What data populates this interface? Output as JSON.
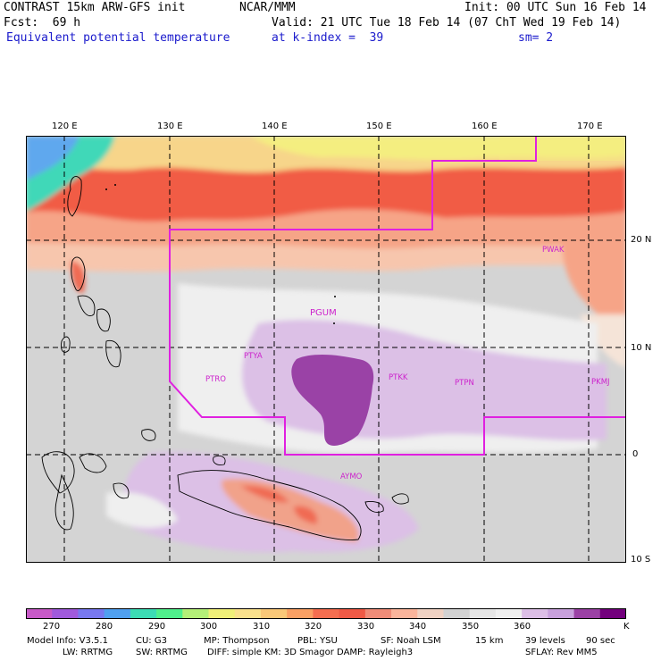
{
  "header": {
    "model": "CONTRAST 15km ARW-GFS init",
    "org": "NCAR/MMM",
    "init": "Init: 00 UTC Sun 16 Feb 14",
    "fcst": "Fcst:  69 h",
    "valid": "Valid: 21 UTC Tue 18 Feb 14 (07 ChT Wed 19 Feb 14)",
    "field": "Equivalent potential temperature",
    "level": "at k-index =  39",
    "smooth": "sm= 2"
  },
  "axes": {
    "lon_labels": [
      "120 E",
      "130 E",
      "140 E",
      "150 E",
      "160 E",
      "170 E"
    ],
    "lat_labels": [
      "20 N",
      "10 N",
      "0",
      "10 S"
    ]
  },
  "stations": [
    "PGUM",
    "PTYA",
    "PTRO",
    "PTKK",
    "PTPN",
    "PKMJ",
    "PWAK",
    "AYMO"
  ],
  "colorbar": {
    "ticks": [
      "270",
      "280",
      "290",
      "300",
      "310",
      "320",
      "330",
      "340",
      "350",
      "360"
    ],
    "unit": "K",
    "colors": [
      "#c85ac8",
      "#a05adc",
      "#7878f0",
      "#50a0f0",
      "#3cdcb4",
      "#50f08c",
      "#b4f078",
      "#f0f078",
      "#fae18c",
      "#fac878",
      "#faa064",
      "#f56e50",
      "#f05a46",
      "#f08c78",
      "#fab49b",
      "#f0d2c3",
      "#d2d2d2",
      "#e6e6e6",
      "#f0f0f0",
      "#dcbee6",
      "#c8a0dc",
      "#9b41a5",
      "#73007d"
    ]
  },
  "footer": {
    "line1": [
      "Model Info: V3.5.1",
      "CU: G3",
      "MP: Thompson",
      "PBL: YSU",
      "SF: Noah LSM",
      "15 km",
      "39 levels",
      "90 sec"
    ],
    "line2": [
      "LW: RRTMG",
      "SW: RRTMG",
      "DIFF: simple KM: 3D Smagor DAMP: Rayleigh3",
      "SFLAY: Rev MM5"
    ]
  }
}
